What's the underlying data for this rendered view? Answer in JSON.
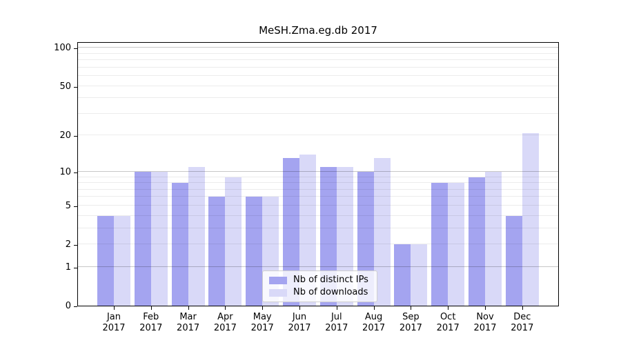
{
  "page": {
    "background": "#ffffff"
  },
  "chart_data": {
    "type": "bar",
    "title": "MeSH.Zma.eg.db 2017",
    "categories": [
      "Jan 2017",
      "Feb 2017",
      "Mar 2017",
      "Apr 2017",
      "May 2017",
      "Jun 2017",
      "Jul 2017",
      "Aug 2017",
      "Sep 2017",
      "Oct 2017",
      "Nov 2017",
      "Dec 2017"
    ],
    "series": [
      {
        "name": "Nb of distinct IPs",
        "color": "#a4a4f0",
        "values": [
          4,
          10,
          8,
          6,
          6,
          13,
          11,
          10,
          2,
          8,
          9,
          4
        ]
      },
      {
        "name": "Nb of downloads",
        "color": "#d9d9f8",
        "values": [
          4,
          10,
          11,
          9,
          6,
          14,
          11,
          13,
          2,
          8,
          10,
          21
        ]
      }
    ],
    "xlabel": "",
    "ylabel": "",
    "yscale": "log1p",
    "ylim": [
      0,
      110
    ],
    "ytick_labels": [
      0,
      1,
      2,
      5,
      10,
      20,
      50,
      100
    ],
    "major_gridlines": [
      1,
      10,
      100
    ],
    "minor_gridlines": [
      2,
      3,
      4,
      5,
      6,
      7,
      8,
      9,
      20,
      30,
      40,
      50,
      60,
      70,
      80,
      90
    ],
    "grid": "on, drawn over bars",
    "legend_position": "bottom-center",
    "colors": {
      "major_grid": "#c8c8c8",
      "minor_grid": "#ececec",
      "axis": "#000000",
      "background": "#ffffff"
    }
  }
}
